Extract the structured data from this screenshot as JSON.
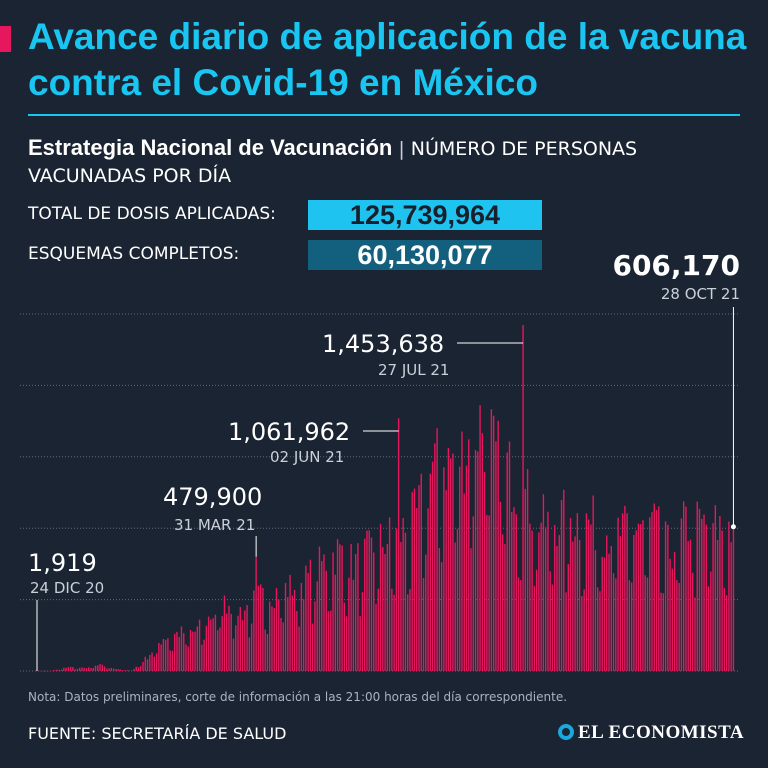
{
  "header": {
    "title": "Avance diario de aplicación de la vacuna contra el Covid-19 en México",
    "subtitle_bold": "Estrategia Nacional de Vacunación",
    "subtitle_separator": "|",
    "subtitle_rest": "NÚMERO DE PERSONAS VACUNADAS POR DÍA"
  },
  "stats": {
    "total_label": "TOTAL DE DOSIS APLICADAS:",
    "total_value": "125,739,964",
    "complete_label": "ESQUEMAS COMPLETOS:",
    "complete_value": "60,130,077"
  },
  "footer": {
    "note": "Nota: Datos preliminares, corte de información a las 21:00 horas del día correspondiente.",
    "source": "FUENTE: SECRETARÍA DE SALUD",
    "logo_text": "EL ECONOMISTA"
  },
  "colors": {
    "background": "#1b2432",
    "bar": "#e6175c",
    "accent": "#19c6f2",
    "box_dark": "#13607e"
  },
  "chart_data": {
    "type": "bar",
    "x_start": "24 DIC 20",
    "x_end": "28 OCT 21",
    "ylim": [
      0,
      1500000
    ],
    "grid": true,
    "gridlines_y": [
      0,
      300000,
      600000,
      900000,
      1200000,
      1500000
    ],
    "weekly_averages": [
      900,
      900,
      17000,
      12000,
      25000,
      9000,
      1000,
      60000,
      140000,
      160000,
      165000,
      230000,
      290000,
      250000,
      310000,
      330000,
      350000,
      380000,
      450000,
      500000,
      450000,
      500000,
      550000,
      580000,
      650000,
      860000,
      880000,
      920000,
      1050000,
      900000,
      820000,
      720000,
      620000,
      640000,
      640000,
      620000,
      590000,
      580000,
      620000,
      610000,
      500000,
      620000,
      606170
    ],
    "annotations": [
      {
        "date": "24 DIC 20",
        "value": 1919,
        "label": "1,919"
      },
      {
        "date": "31 MAR 21",
        "value": 479900,
        "label": "479,900"
      },
      {
        "date": "02 JUN 21",
        "value": 1061962,
        "label": "1,061,962"
      },
      {
        "date": "27 JUL 21",
        "value": 1453638,
        "label": "1,453,638"
      },
      {
        "date": "28 OCT 21",
        "value": 606170,
        "label": "606,170"
      }
    ]
  }
}
